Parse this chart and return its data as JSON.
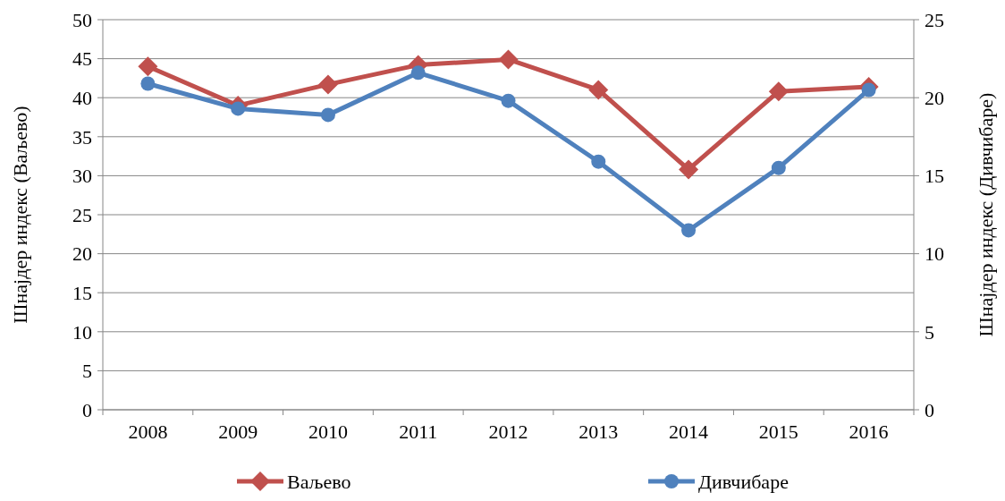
{
  "chart_data": {
    "type": "line",
    "ylabel": "Шнајдер индекс (Ваљево)",
    "y2label": "Шнајдер индекс (Дивчибаре)",
    "categories": [
      "2008",
      "2009",
      "2010",
      "2011",
      "2012",
      "2013",
      "2014",
      "2015",
      "2016"
    ],
    "series": [
      {
        "name": "Ваљево",
        "color": "#c0504d",
        "marker": "diamond",
        "values": [
          44,
          39,
          41.7,
          44.2,
          44.9,
          41,
          30.8,
          40.8,
          41.4
        ]
      },
      {
        "name": "Дивчибаре",
        "color": "#4f81bd",
        "marker": "circle",
        "axis": "y2",
        "values": [
          20.9,
          19.3,
          18.9,
          21.6,
          19.8,
          15.9,
          11.5,
          15.5,
          20.5
        ]
      }
    ],
    "ylim": [
      0,
      50
    ],
    "yticks": [
      0,
      5,
      10,
      15,
      20,
      25,
      30,
      35,
      40,
      45,
      50
    ],
    "y2lim": [
      0,
      25
    ],
    "y2ticks": [
      0,
      5,
      10,
      15,
      20,
      25
    ],
    "grid": "y",
    "legend": "bottom",
    "line_style": "solid"
  }
}
